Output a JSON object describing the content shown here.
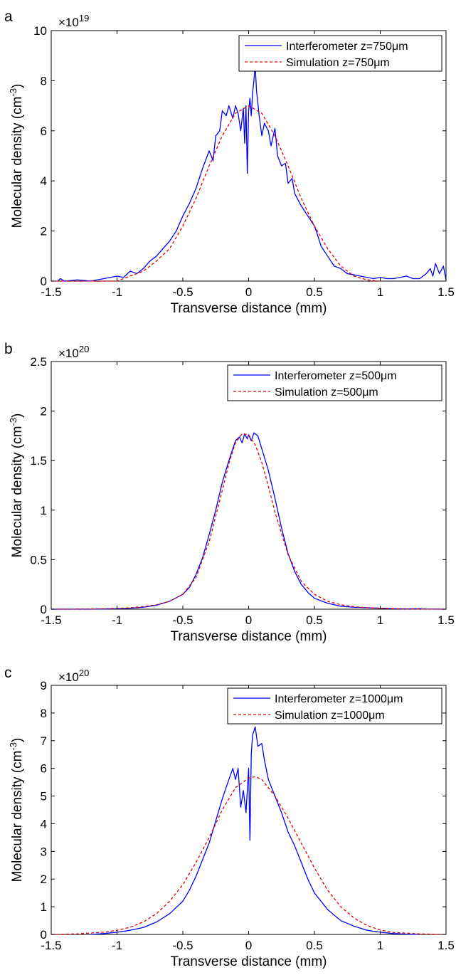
{
  "figure": {
    "panels": [
      {
        "panel_label": "a",
        "exponent_prefix": "×10",
        "exponent": "19"
      },
      {
        "panel_label": "b",
        "exponent_prefix": "×10",
        "exponent": "20"
      },
      {
        "panel_label": "c",
        "exponent_prefix": "×10",
        "exponent": "20"
      }
    ]
  },
  "colors": {
    "measured": "#0000ff",
    "simulated": "#e00000",
    "axes": "#000000"
  },
  "chart_data": [
    {
      "type": "line",
      "panel_label": "a",
      "xlabel": "Transverse distance (mm)",
      "ylabel": "Molecular density (cm-3)",
      "xlim": [
        -1.5,
        1.5
      ],
      "ylim": [
        0,
        10
      ],
      "y_multiplier": "×10^19",
      "xticks": [
        -1.5,
        -1,
        -0.5,
        0,
        0.5,
        1,
        1.5
      ],
      "yticks": [
        0,
        2,
        4,
        6,
        8,
        10
      ],
      "xtick_labels": [
        "-1.5",
        "-1",
        "-0.5",
        "0",
        "0.5",
        "1",
        "1.5"
      ],
      "ytick_labels": [
        "0",
        "2",
        "4",
        "6",
        "8",
        "10"
      ],
      "legend_placement": "top-right",
      "grid": false,
      "series": [
        {
          "name": "Interferometer z=750μm",
          "style": "solid",
          "color": "#0000ff",
          "x": [
            -1.45,
            -1.43,
            -1.4,
            -1.3,
            -1.2,
            -1.1,
            -1.0,
            -0.95,
            -0.9,
            -0.85,
            -0.8,
            -0.75,
            -0.7,
            -0.65,
            -0.6,
            -0.55,
            -0.5,
            -0.45,
            -0.4,
            -0.35,
            -0.3,
            -0.27,
            -0.25,
            -0.22,
            -0.2,
            -0.17,
            -0.15,
            -0.12,
            -0.1,
            -0.08,
            -0.06,
            -0.04,
            -0.03,
            -0.02,
            -0.01,
            0.0,
            0.01,
            0.02,
            0.03,
            0.04,
            0.05,
            0.06,
            0.08,
            0.1,
            0.12,
            0.15,
            0.17,
            0.2,
            0.22,
            0.25,
            0.28,
            0.3,
            0.33,
            0.35,
            0.4,
            0.45,
            0.5,
            0.52,
            0.55,
            0.6,
            0.65,
            0.7,
            0.75,
            0.8,
            0.85,
            0.9,
            0.95,
            1.0,
            1.05,
            1.1,
            1.15,
            1.2,
            1.25,
            1.3,
            1.35,
            1.38,
            1.4,
            1.42,
            1.45,
            1.48,
            1.5
          ],
          "y": [
            0.0,
            0.1,
            0.0,
            0.05,
            0.0,
            0.1,
            0.2,
            0.15,
            0.4,
            0.3,
            0.5,
            0.8,
            1.0,
            1.3,
            1.6,
            2.0,
            2.6,
            3.1,
            3.7,
            4.5,
            5.2,
            4.8,
            5.8,
            6.0,
            6.8,
            6.6,
            7.0,
            6.5,
            7.0,
            6.7,
            6.0,
            6.9,
            5.5,
            7.0,
            4.3,
            6.8,
            7.3,
            6.6,
            7.5,
            8.0,
            8.6,
            7.6,
            6.6,
            5.8,
            6.3,
            6.0,
            5.4,
            6.1,
            5.0,
            4.6,
            4.7,
            3.9,
            4.1,
            3.5,
            3.0,
            2.6,
            2.2,
            1.9,
            1.4,
            1.0,
            0.6,
            0.5,
            0.3,
            0.25,
            0.2,
            0.15,
            0.1,
            0.15,
            0.1,
            0.1,
            0.15,
            0.2,
            0.1,
            0.1,
            0.3,
            0.5,
            0.2,
            0.7,
            0.3,
            0.6,
            0.05
          ]
        },
        {
          "name": "Simulation z=750μm",
          "style": "dashed",
          "color": "#e00000",
          "x": [
            -1.5,
            -1.4,
            -1.3,
            -1.2,
            -1.1,
            -1.0,
            -0.9,
            -0.8,
            -0.7,
            -0.6,
            -0.5,
            -0.4,
            -0.3,
            -0.2,
            -0.1,
            0.0,
            0.1,
            0.2,
            0.3,
            0.4,
            0.5,
            0.6,
            0.7,
            0.8,
            0.9,
            1.0
          ],
          "y": [
            0.0,
            0.0,
            0.0,
            0.0,
            0.0,
            0.0,
            0.2,
            0.4,
            0.8,
            1.3,
            2.2,
            3.3,
            4.6,
            5.8,
            6.7,
            7.0,
            6.7,
            5.8,
            4.6,
            3.3,
            2.2,
            1.3,
            0.6,
            0.2,
            0.05,
            0.0
          ]
        }
      ]
    },
    {
      "type": "line",
      "panel_label": "b",
      "xlabel": "Transverse distance (mm)",
      "ylabel": "Molecular density (cm-3)",
      "xlim": [
        -1.5,
        1.5
      ],
      "ylim": [
        0,
        2.5
      ],
      "y_multiplier": "×10^20",
      "xticks": [
        -1.5,
        -1,
        -0.5,
        0,
        0.5,
        1,
        1.5
      ],
      "yticks": [
        0,
        0.5,
        1,
        1.5,
        2,
        2.5
      ],
      "xtick_labels": [
        "-1.5",
        "-1",
        "-0.5",
        "0",
        "0.5",
        "1",
        "1.5"
      ],
      "ytick_labels": [
        "0",
        "0.5",
        "1",
        "1.5",
        "2",
        "2.5"
      ],
      "legend_placement": "top-right",
      "grid": false,
      "series": [
        {
          "name": "Interferometer z=500μm",
          "style": "solid",
          "color": "#0000ff",
          "x": [
            -1.5,
            -1.2,
            -1.0,
            -0.9,
            -0.8,
            -0.7,
            -0.6,
            -0.5,
            -0.45,
            -0.4,
            -0.35,
            -0.3,
            -0.25,
            -0.2,
            -0.15,
            -0.1,
            -0.07,
            -0.05,
            -0.03,
            -0.01,
            0.0,
            0.02,
            0.04,
            0.05,
            0.07,
            0.1,
            0.15,
            0.2,
            0.25,
            0.3,
            0.35,
            0.4,
            0.45,
            0.5,
            0.6,
            0.7,
            0.8,
            0.9,
            1.0,
            1.1,
            1.2,
            1.3,
            1.35,
            1.5
          ],
          "y": [
            0.0,
            0.0,
            0.005,
            0.01,
            0.02,
            0.04,
            0.08,
            0.15,
            0.22,
            0.35,
            0.52,
            0.75,
            1.0,
            1.28,
            1.5,
            1.7,
            1.74,
            1.68,
            1.77,
            1.72,
            1.76,
            1.7,
            1.78,
            1.77,
            1.75,
            1.62,
            1.4,
            1.12,
            0.82,
            0.56,
            0.38,
            0.25,
            0.17,
            0.11,
            0.06,
            0.03,
            0.02,
            0.015,
            0.01,
            0.005,
            0.003,
            0.005,
            0.002,
            0.0
          ]
        },
        {
          "name": "Simulation z=500μm",
          "style": "dashed",
          "color": "#e00000",
          "x": [
            -1.5,
            -1.2,
            -1.0,
            -0.9,
            -0.8,
            -0.7,
            -0.6,
            -0.5,
            -0.4,
            -0.3,
            -0.2,
            -0.15,
            -0.1,
            -0.05,
            0.0,
            0.05,
            0.1,
            0.15,
            0.2,
            0.3,
            0.4,
            0.5,
            0.6,
            0.7,
            0.8,
            0.9,
            1.0,
            1.1,
            1.2,
            1.5
          ],
          "y": [
            0.0,
            0.002,
            0.008,
            0.015,
            0.025,
            0.045,
            0.08,
            0.15,
            0.32,
            0.68,
            1.2,
            1.47,
            1.68,
            1.77,
            1.76,
            1.66,
            1.48,
            1.24,
            0.98,
            0.55,
            0.28,
            0.15,
            0.08,
            0.045,
            0.025,
            0.015,
            0.01,
            0.005,
            0.002,
            0.0
          ]
        }
      ]
    },
    {
      "type": "line",
      "panel_label": "c",
      "xlabel": "Transverse distance (mm)",
      "ylabel": "Molecular density (cm-3)",
      "xlim": [
        -1.5,
        1.5
      ],
      "ylim": [
        0,
        9
      ],
      "y_multiplier": "×10^20",
      "xticks": [
        -1.5,
        -1,
        -0.5,
        0,
        0.5,
        1,
        1.5
      ],
      "yticks": [
        0,
        1,
        2,
        3,
        4,
        5,
        6,
        7,
        8,
        9
      ],
      "xtick_labels": [
        "-1.5",
        "-1",
        "-0.5",
        "0",
        "0.5",
        "1",
        "1.5"
      ],
      "ytick_labels": [
        "0",
        "1",
        "2",
        "3",
        "4",
        "5",
        "6",
        "7",
        "8",
        "9"
      ],
      "legend_placement": "top-right",
      "grid": false,
      "series": [
        {
          "name": "Interferometer z=1000μm",
          "style": "solid",
          "color": "#0000ff",
          "x": [
            -1.2,
            -1.1,
            -1.0,
            -0.9,
            -0.8,
            -0.7,
            -0.6,
            -0.5,
            -0.45,
            -0.4,
            -0.35,
            -0.3,
            -0.25,
            -0.2,
            -0.15,
            -0.12,
            -0.1,
            -0.08,
            -0.06,
            -0.04,
            -0.02,
            0.0,
            0.01,
            0.02,
            0.03,
            0.05,
            0.07,
            0.1,
            0.12,
            0.15,
            0.2,
            0.25,
            0.3,
            0.35,
            0.4,
            0.45,
            0.5,
            0.6,
            0.7,
            0.8,
            0.9,
            1.0,
            1.1,
            1.2,
            1.3
          ],
          "y": [
            0.0,
            0.03,
            0.08,
            0.15,
            0.25,
            0.45,
            0.75,
            1.2,
            1.6,
            2.1,
            2.7,
            3.3,
            4.1,
            4.9,
            5.6,
            6.0,
            5.6,
            6.0,
            4.6,
            5.2,
            4.4,
            6.0,
            3.4,
            6.5,
            7.2,
            7.5,
            6.8,
            6.9,
            6.3,
            5.6,
            5.0,
            4.4,
            3.7,
            3.2,
            2.6,
            2.0,
            1.5,
            0.9,
            0.5,
            0.3,
            0.15,
            0.08,
            0.03,
            0.01,
            0.0
          ]
        },
        {
          "name": "Simulation z=1000μm",
          "style": "dashed",
          "color": "#e00000",
          "x": [
            -1.5,
            -1.3,
            -1.1,
            -1.0,
            -0.9,
            -0.8,
            -0.7,
            -0.6,
            -0.5,
            -0.4,
            -0.3,
            -0.2,
            -0.1,
            0.0,
            0.05,
            0.1,
            0.2,
            0.3,
            0.4,
            0.5,
            0.6,
            0.7,
            0.8,
            0.9,
            1.0,
            1.1,
            1.3,
            1.5
          ],
          "y": [
            0.0,
            0.02,
            0.08,
            0.15,
            0.26,
            0.45,
            0.75,
            1.2,
            1.8,
            2.6,
            3.5,
            4.5,
            5.3,
            5.65,
            5.7,
            5.6,
            5.0,
            4.2,
            3.3,
            2.4,
            1.6,
            1.0,
            0.6,
            0.32,
            0.16,
            0.07,
            0.02,
            0.0
          ]
        }
      ]
    }
  ]
}
